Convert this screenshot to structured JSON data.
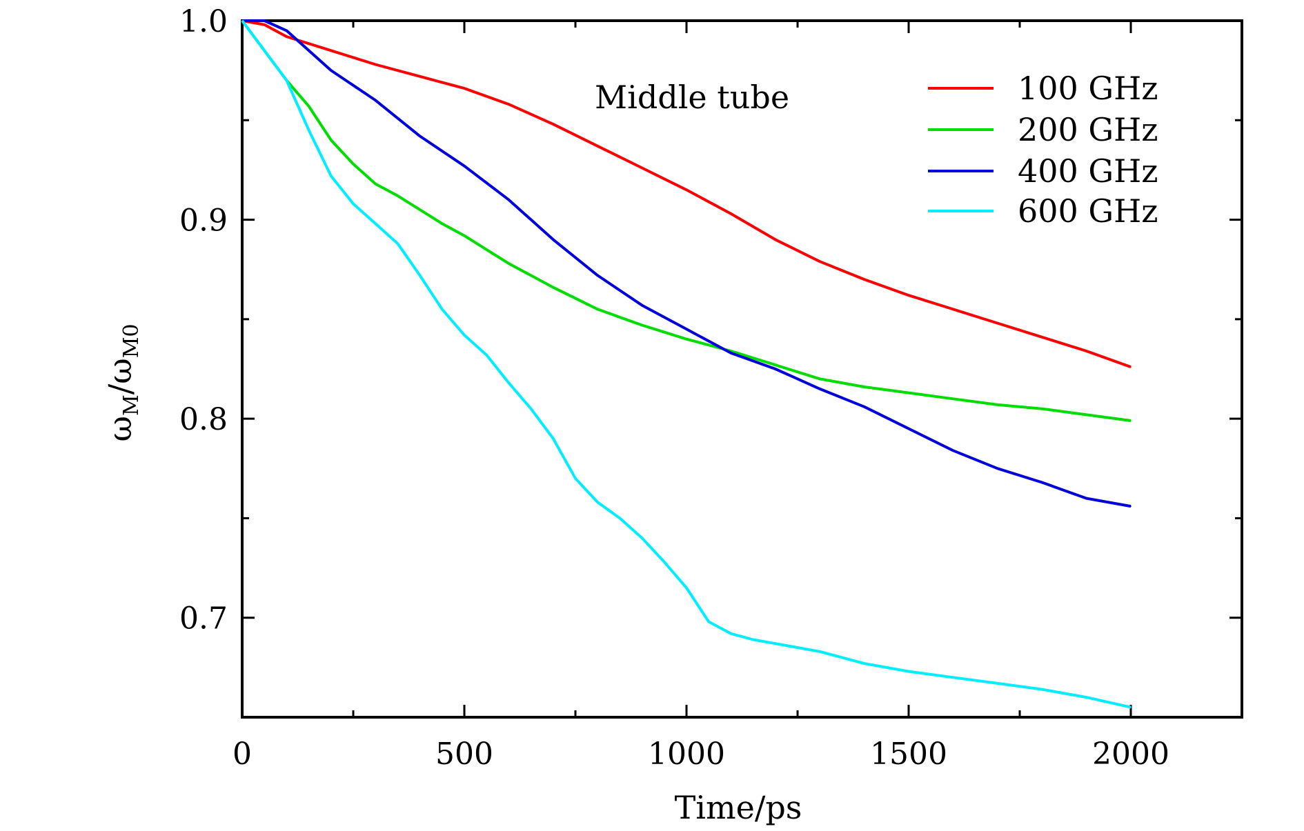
{
  "chart_data": {
    "type": "line",
    "title": "",
    "annotation": "Middle tube",
    "xlabel": "Time/ps",
    "ylabel": {
      "base": "ω",
      "num_sub": "M",
      "sep": "/",
      "den_base": "ω",
      "den_sub": "M0"
    },
    "xlim": [
      0,
      2250
    ],
    "ylim": [
      0.65,
      1.0
    ],
    "x_ticks": [
      0,
      500,
      1000,
      1500,
      2000
    ],
    "x_tick_labels": [
      "0",
      "500",
      "1000",
      "1500",
      "2000"
    ],
    "x_minor_ticks": [
      250,
      750,
      1250,
      1750
    ],
    "y_ticks": [
      0.7,
      0.8,
      0.9,
      1.0
    ],
    "y_tick_labels": [
      "0.7",
      "0.8",
      "0.9",
      "1.0"
    ],
    "y_minor_ticks": [
      0.75,
      0.85,
      0.95
    ],
    "legend_position": "top-right",
    "grid": false,
    "series": [
      {
        "name": "100 GHz",
        "color": "#ff0000",
        "x": [
          0,
          50,
          100,
          200,
          300,
          400,
          500,
          600,
          700,
          800,
          900,
          1000,
          1100,
          1200,
          1300,
          1400,
          1500,
          1600,
          1700,
          1800,
          1900,
          2000
        ],
        "y": [
          1.0,
          0.998,
          0.992,
          0.985,
          0.978,
          0.972,
          0.966,
          0.958,
          0.948,
          0.937,
          0.926,
          0.915,
          0.903,
          0.89,
          0.879,
          0.87,
          0.862,
          0.855,
          0.848,
          0.841,
          0.834,
          0.826
        ]
      },
      {
        "name": "200 GHz",
        "color": "#00dd00",
        "x": [
          0,
          50,
          100,
          150,
          200,
          250,
          300,
          350,
          400,
          450,
          500,
          550,
          600,
          650,
          700,
          800,
          900,
          1000,
          1100,
          1200,
          1300,
          1400,
          1500,
          1600,
          1700,
          1800,
          1900,
          2000
        ],
        "y": [
          1.0,
          0.985,
          0.97,
          0.957,
          0.94,
          0.928,
          0.918,
          0.912,
          0.905,
          0.898,
          0.892,
          0.885,
          0.878,
          0.872,
          0.866,
          0.855,
          0.847,
          0.84,
          0.834,
          0.827,
          0.82,
          0.816,
          0.813,
          0.81,
          0.807,
          0.805,
          0.802,
          0.799
        ]
      },
      {
        "name": "400 GHz",
        "color": "#0000dd",
        "x": [
          0,
          50,
          100,
          150,
          200,
          300,
          400,
          500,
          600,
          700,
          800,
          900,
          1000,
          1100,
          1200,
          1300,
          1400,
          1500,
          1600,
          1700,
          1800,
          1900,
          2000
        ],
        "y": [
          1.0,
          1.0,
          0.995,
          0.985,
          0.975,
          0.96,
          0.942,
          0.927,
          0.91,
          0.89,
          0.872,
          0.857,
          0.845,
          0.833,
          0.825,
          0.815,
          0.806,
          0.795,
          0.784,
          0.775,
          0.768,
          0.76,
          0.756
        ]
      },
      {
        "name": "600 GHz",
        "color": "#00eeff",
        "x": [
          0,
          50,
          100,
          150,
          200,
          250,
          300,
          350,
          400,
          450,
          500,
          550,
          600,
          650,
          700,
          750,
          800,
          850,
          900,
          950,
          1000,
          1050,
          1100,
          1150,
          1200,
          1300,
          1400,
          1500,
          1600,
          1700,
          1800,
          1900,
          2000
        ],
        "y": [
          1.0,
          0.985,
          0.97,
          0.945,
          0.922,
          0.908,
          0.898,
          0.888,
          0.872,
          0.855,
          0.842,
          0.832,
          0.818,
          0.805,
          0.79,
          0.77,
          0.758,
          0.75,
          0.74,
          0.728,
          0.715,
          0.698,
          0.692,
          0.689,
          0.687,
          0.683,
          0.677,
          0.673,
          0.67,
          0.667,
          0.664,
          0.66,
          0.655
        ]
      }
    ]
  }
}
